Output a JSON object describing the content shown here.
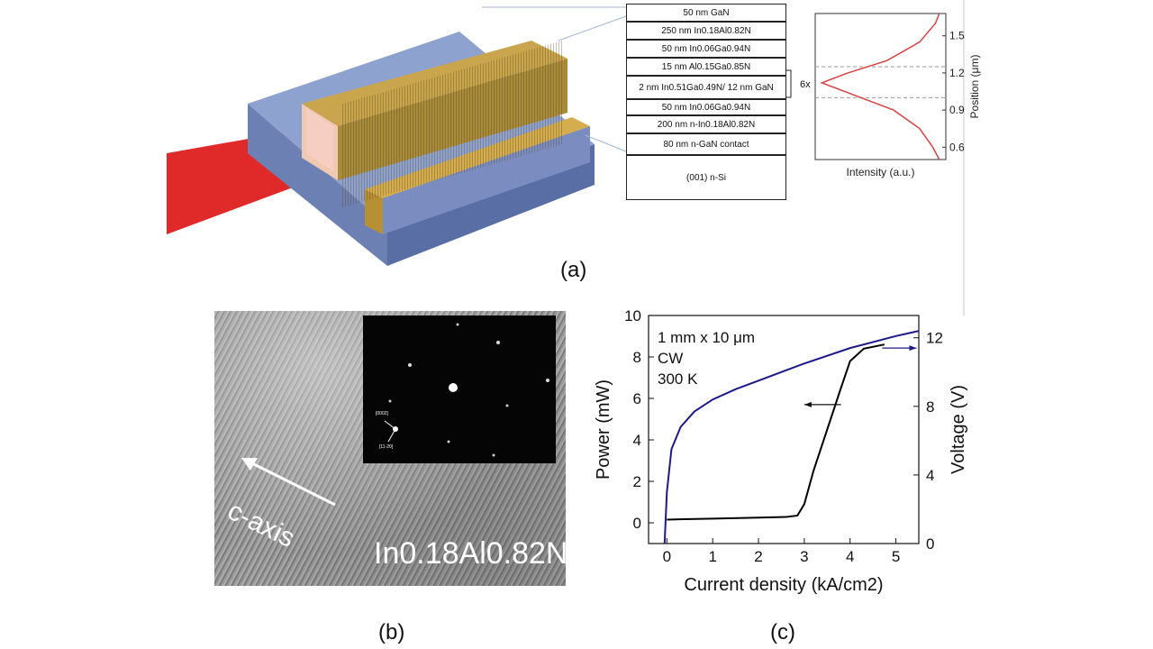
{
  "panel_labels": {
    "a": "(a)",
    "b": "(b)",
    "c": "(c)"
  },
  "layers": [
    {
      "text": "50 nm GaN"
    },
    {
      "text": "250 nm In0.18Al0.82N"
    },
    {
      "text": "50 nm In0.06Ga0.94N"
    },
    {
      "text": "15 nm Al0.15Ga0.85N"
    },
    {
      "text": "2 nm In0.51Ga0.49N/ 12 nm GaN"
    },
    {
      "text": "50 nm In0.06Ga0.94N"
    },
    {
      "text": "200 nm n-In0.18Al0.82N"
    },
    {
      "text": "80 nm n-GaN contact"
    },
    {
      "text": "(001) n-Si"
    }
  ],
  "repeat_label": "6x",
  "tem": {
    "axis_label": "c-axis",
    "composition_label": "In0.18Al0.82N",
    "diffraction_labels": [
      "[0002]",
      "[11-20]"
    ]
  },
  "chart_data": [
    {
      "type": "line",
      "xlabel": "Intensity (a.u.)",
      "ylabel": "Position (μm)",
      "ylim": [
        0.5,
        1.68
      ],
      "yticks": [
        0.6,
        0.9,
        1.2,
        1.5
      ],
      "series": [
        {
          "color": "#d84343",
          "points": [
            [
              0.95,
              0.5
            ],
            [
              0.9,
              0.6
            ],
            [
              0.8,
              0.75
            ],
            [
              0.6,
              0.9
            ],
            [
              0.3,
              1.02
            ],
            [
              0.05,
              1.12
            ],
            [
              0.25,
              1.2
            ],
            [
              0.55,
              1.3
            ],
            [
              0.8,
              1.45
            ],
            [
              0.92,
              1.6
            ],
            [
              0.95,
              1.68
            ]
          ]
        }
      ],
      "reference_lines": [
        1.0,
        1.25
      ]
    },
    {
      "type": "line",
      "xlabel": "Current density (kA/cm2)",
      "ylabel_left": "Power (mW)",
      "ylabel_right": "Voltage (V)",
      "xlim": [
        -0.4,
        5.5
      ],
      "ylim_left": [
        -1,
        10
      ],
      "ylim_right": [
        0,
        13.3
      ],
      "xticks": [
        0,
        1,
        2,
        3,
        4,
        5
      ],
      "yticks_left": [
        0,
        2,
        4,
        6,
        8,
        10
      ],
      "yticks_right": [
        0,
        4,
        8,
        12
      ],
      "annotations": [
        "1 mm x 10 μm",
        "CW",
        "300 K"
      ],
      "series": [
        {
          "axis": "left",
          "color": "#000000",
          "points": [
            [
              0,
              0.15
            ],
            [
              0.5,
              0.18
            ],
            [
              1,
              0.2
            ],
            [
              2,
              0.25
            ],
            [
              2.6,
              0.28
            ],
            [
              2.85,
              0.35
            ],
            [
              3,
              0.9
            ],
            [
              3.2,
              2.5
            ],
            [
              3.5,
              4.5
            ],
            [
              3.8,
              6.5
            ],
            [
              4.0,
              7.8
            ],
            [
              4.3,
              8.4
            ],
            [
              4.75,
              8.6
            ]
          ]
        },
        {
          "axis": "right",
          "color": "#1a1a8c",
          "points": [
            [
              -0.05,
              0
            ],
            [
              0,
              3
            ],
            [
              0.1,
              5.5
            ],
            [
              0.3,
              6.8
            ],
            [
              0.6,
              7.7
            ],
            [
              1,
              8.4
            ],
            [
              1.5,
              9.0
            ],
            [
              2,
              9.5
            ],
            [
              3,
              10.5
            ],
            [
              4,
              11.4
            ],
            [
              5,
              12.1
            ],
            [
              5.5,
              12.4
            ]
          ]
        }
      ]
    }
  ]
}
